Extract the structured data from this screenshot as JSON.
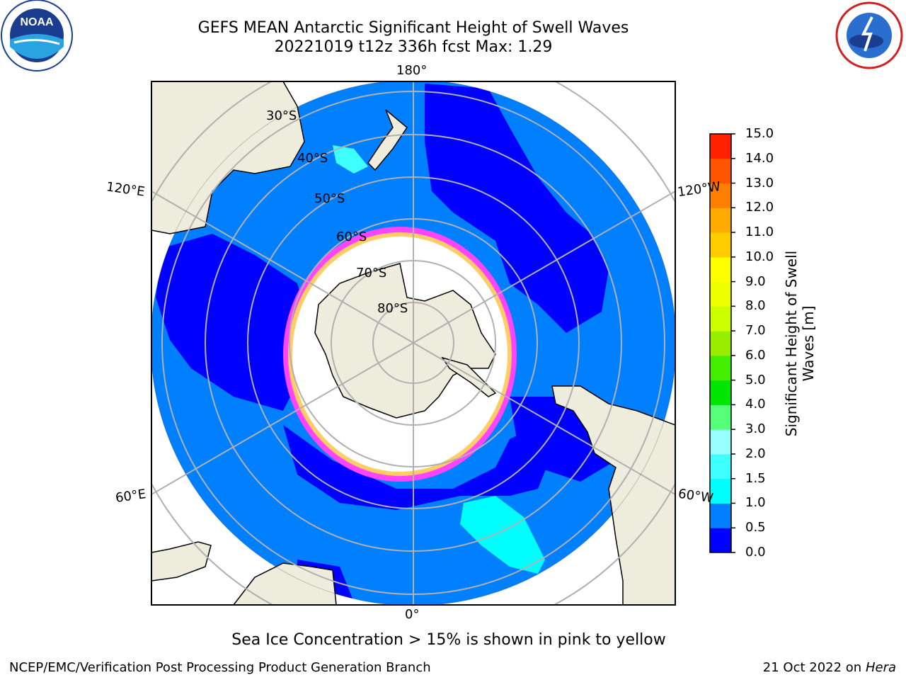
{
  "header": {
    "title_line1": "GEFS MEAN Antarctic Significant Height of Swell Waves",
    "title_line2": "20221019 t12z 336h fcst   Max: 1.29"
  },
  "logos": {
    "left": {
      "name": "noaa-logo",
      "text": "NOAA",
      "ring_text": "NATIONAL OCEANIC AND ATMOSPHERIC ADMINISTRATION · U.S. DEPARTMENT OF COMMERCE"
    },
    "right": {
      "name": "nws-logo",
      "ring_text": "NATIONAL WEATHER SERVICE"
    }
  },
  "map": {
    "projection": "south-polar-stereographic",
    "longitude_labels": {
      "top": "180°",
      "bottom": "0°",
      "upper_left": "120°E",
      "upper_right": "120°W",
      "lower_left": "60°E",
      "lower_right": "60°W"
    },
    "latitude_labels": [
      "30°S",
      "40°S",
      "50°S",
      "60°S",
      "70°S",
      "80°S"
    ],
    "colors": {
      "ocean_base": "#0080ff",
      "ocean_low": "#0000ff",
      "ocean_mid": "#00ffff",
      "land": "#eeecdc",
      "ice": "#ffffff",
      "ice_edge": "#ff44ff",
      "grid": "#b0b0b0"
    }
  },
  "colorbar": {
    "label_line1": "Significant Height of Swell",
    "label_line2": "Waves [m]",
    "ticks": [
      "0.0",
      "0.5",
      "1.0",
      "1.5",
      "2.0",
      "3.0",
      "4.0",
      "5.0",
      "6.0",
      "7.0",
      "8.0",
      "9.0",
      "10.0",
      "11.0",
      "12.0",
      "13.0",
      "14.0",
      "15.0"
    ],
    "colors": [
      "#0000ff",
      "#0080ff",
      "#00ffff",
      "#40ffff",
      "#99ffff",
      "#55ff77",
      "#00e600",
      "#44ee00",
      "#99ee00",
      "#ccff00",
      "#eeff00",
      "#ffff00",
      "#ffcc00",
      "#ffaa00",
      "#ff8000",
      "#ff5500",
      "#ff2200",
      "#ff0000"
    ]
  },
  "note": "Sea Ice Concentration > 15% is shown in pink to yellow",
  "footer": {
    "left": "NCEP/EMC/Verification Post Processing Product Generation Branch",
    "right_prefix": "21 Oct 2022 on ",
    "right_machine": "Hera"
  }
}
